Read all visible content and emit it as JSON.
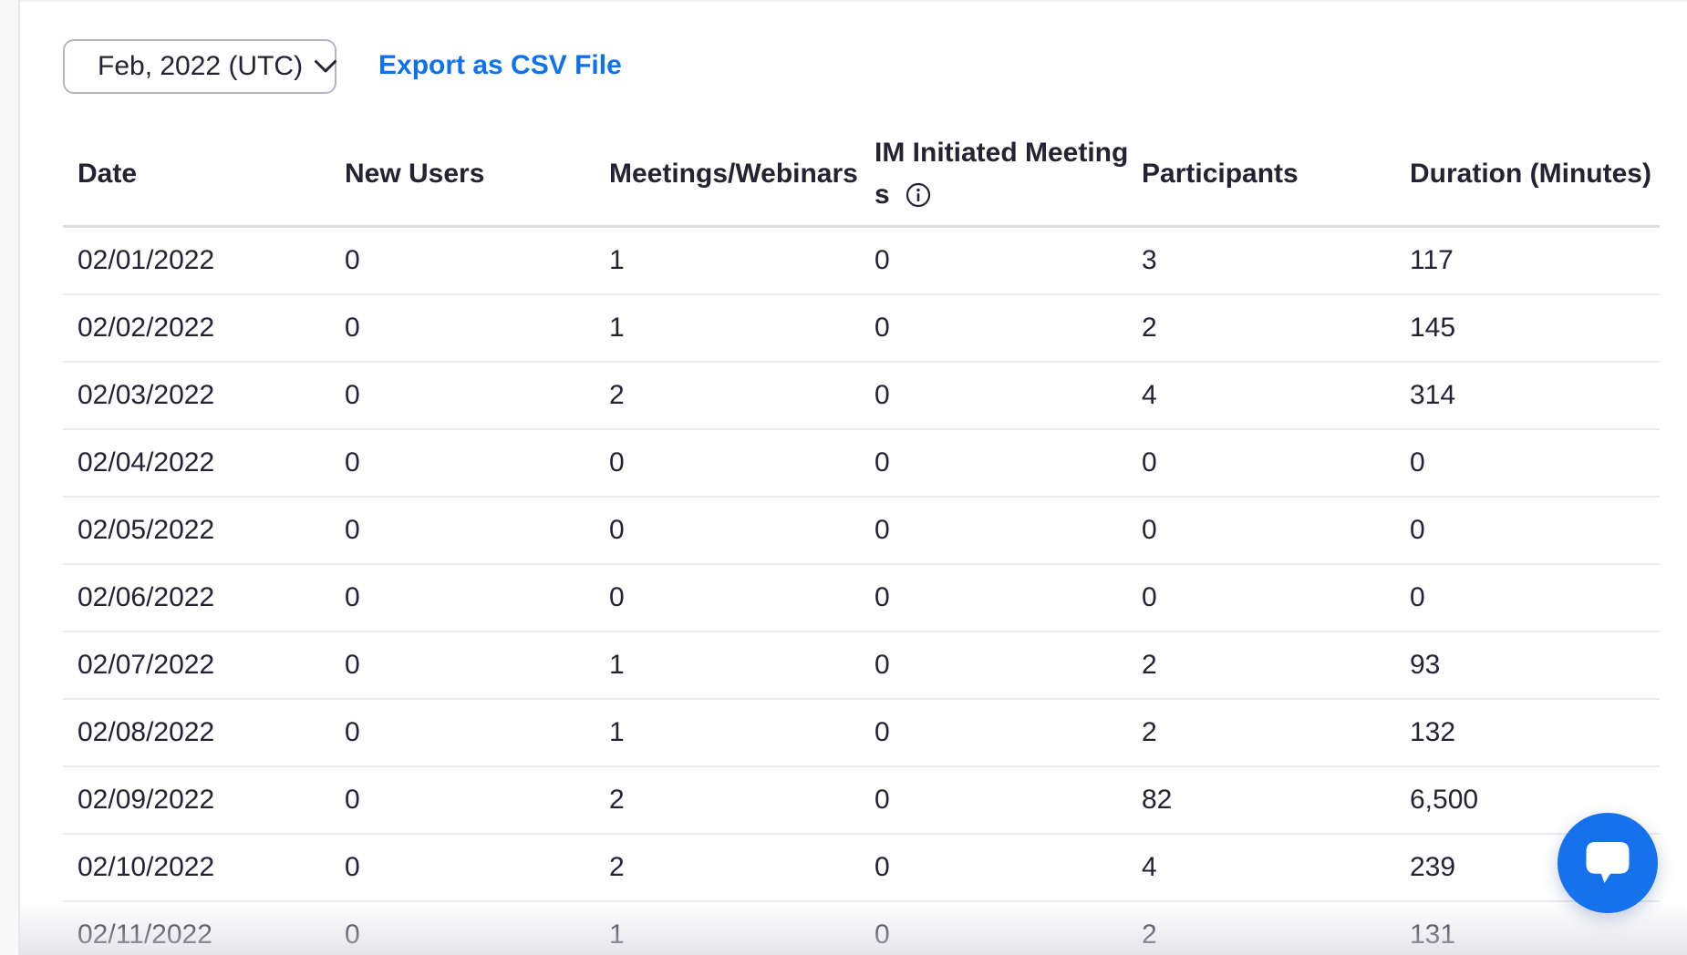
{
  "toolbar": {
    "month_selector": {
      "value": "Feb, 2022 (UTC)"
    },
    "export_label": "Export as CSV File"
  },
  "table": {
    "columns": [
      "Date",
      "New Users",
      "Meetings/Webinars",
      "IM Initiated Meetings",
      "Participants",
      "Duration (Minutes)"
    ],
    "column_keys": [
      "date",
      "new-users",
      "meetings-webinars",
      "im-initiated-meetings",
      "participants",
      "duration-minutes"
    ],
    "im_header_wrap": {
      "line1": "IM Initiated Meeting",
      "line2": "s"
    },
    "rows": [
      [
        "02/01/2022",
        "0",
        "1",
        "0",
        "3",
        "117"
      ],
      [
        "02/02/2022",
        "0",
        "1",
        "0",
        "2",
        "145"
      ],
      [
        "02/03/2022",
        "0",
        "2",
        "0",
        "4",
        "314"
      ],
      [
        "02/04/2022",
        "0",
        "0",
        "0",
        "0",
        "0"
      ],
      [
        "02/05/2022",
        "0",
        "0",
        "0",
        "0",
        "0"
      ],
      [
        "02/06/2022",
        "0",
        "0",
        "0",
        "0",
        "0"
      ],
      [
        "02/07/2022",
        "0",
        "1",
        "0",
        "2",
        "93"
      ],
      [
        "02/08/2022",
        "0",
        "1",
        "0",
        "2",
        "132"
      ],
      [
        "02/09/2022",
        "0",
        "2",
        "0",
        "82",
        "6,500"
      ],
      [
        "02/10/2022",
        "0",
        "2",
        "0",
        "4",
        "239"
      ],
      [
        "02/11/2022",
        "0",
        "1",
        "0",
        "2",
        "131"
      ]
    ]
  },
  "icons": {
    "dropdown": "chevron-down-icon",
    "im_header": "info-icon",
    "chat_widget": "chat-bubble-icon"
  },
  "colors": {
    "accent_blue": "#0E72ED",
    "chat_blue": "#1672EC",
    "text_dark": "#232333"
  }
}
